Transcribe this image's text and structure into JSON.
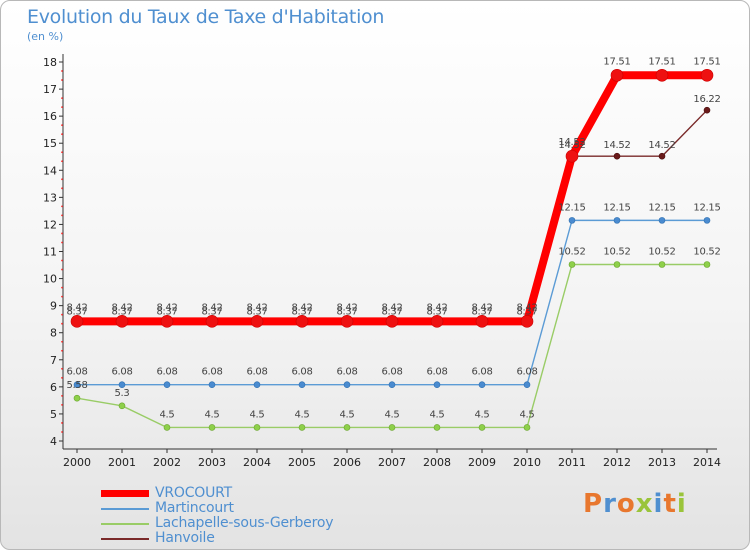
{
  "header": {
    "title": "Evolution du Taux de Taxe d'Habitation",
    "subtitle": "(en %)"
  },
  "logo": {
    "text": "Proxiti",
    "colors": [
      "#e8772e",
      "#4f8fd0",
      "#e8772e",
      "#9ac43a",
      "#4f8fd0",
      "#e8772e",
      "#9ac43a"
    ]
  },
  "chart_data": {
    "type": "line",
    "title": "Evolution du Taux de Taxe d'Habitation",
    "ylabel": "(en %)",
    "x": [
      "2000",
      "2001",
      "2002",
      "2003",
      "2004",
      "2005",
      "2006",
      "2007",
      "2008",
      "2009",
      "2010",
      "2011",
      "2012",
      "2013",
      "2014"
    ],
    "ylim": [
      4,
      18
    ],
    "yticks": [
      "4",
      "5",
      "6",
      "7",
      "8",
      "9",
      "10",
      "11",
      "12",
      "13",
      "14",
      "15",
      "16",
      "17",
      "18"
    ],
    "grid": false,
    "legend_position": "bottom-left",
    "series": [
      {
        "name": "VROCOURT",
        "color": "#ff0000",
        "values": [
          8.42,
          8.42,
          8.42,
          8.42,
          8.42,
          8.42,
          8.42,
          8.42,
          8.42,
          8.42,
          8.42,
          14.52,
          17.51,
          17.51,
          17.51
        ],
        "labels": [
          "8.42",
          "8.42",
          "8.42",
          "8.42",
          "8.42",
          "8.42",
          "8.42",
          "8.42",
          "8.42",
          "8.42",
          "8.42",
          "14.52",
          "17.51",
          "17.51",
          "17.51"
        ]
      },
      {
        "name": "Martincourt",
        "color": "#5b9bd5",
        "values": [
          6.08,
          6.08,
          6.08,
          6.08,
          6.08,
          6.08,
          6.08,
          6.08,
          6.08,
          6.08,
          6.08,
          12.15,
          12.15,
          12.15,
          12.15
        ],
        "labels": [
          "6.08",
          "6.08",
          "6.08",
          "6.08",
          "6.08",
          "6.08",
          "6.08",
          "6.08",
          "6.08",
          "6.08",
          "6.08",
          "12.15",
          "12.15",
          "12.15",
          "12.15"
        ]
      },
      {
        "name": "Lachapelle-sous-Gerberoy",
        "color": "#99cc66",
        "values": [
          5.58,
          5.3,
          4.5,
          4.5,
          4.5,
          4.5,
          4.5,
          4.5,
          4.5,
          4.5,
          4.5,
          10.52,
          10.52,
          10.52,
          10.52
        ],
        "labels": [
          "5.58",
          "5.3",
          "4.5",
          "4.5",
          "4.5",
          "4.5",
          "4.5",
          "4.5",
          "4.5",
          "4.5",
          "4.5",
          "10.52",
          "10.52",
          "10.52",
          "10.52"
        ]
      },
      {
        "name": "Hanvoile",
        "color": "#7a2a2a",
        "values": [
          8.37,
          8.37,
          8.37,
          8.37,
          8.37,
          8.37,
          8.37,
          8.37,
          8.37,
          8.37,
          8.37,
          14.52,
          14.52,
          14.52,
          16.22
        ],
        "labels": [
          "8.37",
          "8.37",
          "8.37",
          "8.37",
          "8.37",
          "8.37",
          "8.37",
          "8.37",
          "8.37",
          "8.37",
          "8.37",
          "14.52",
          "14.52",
          "14.52",
          "16.22"
        ]
      }
    ]
  }
}
